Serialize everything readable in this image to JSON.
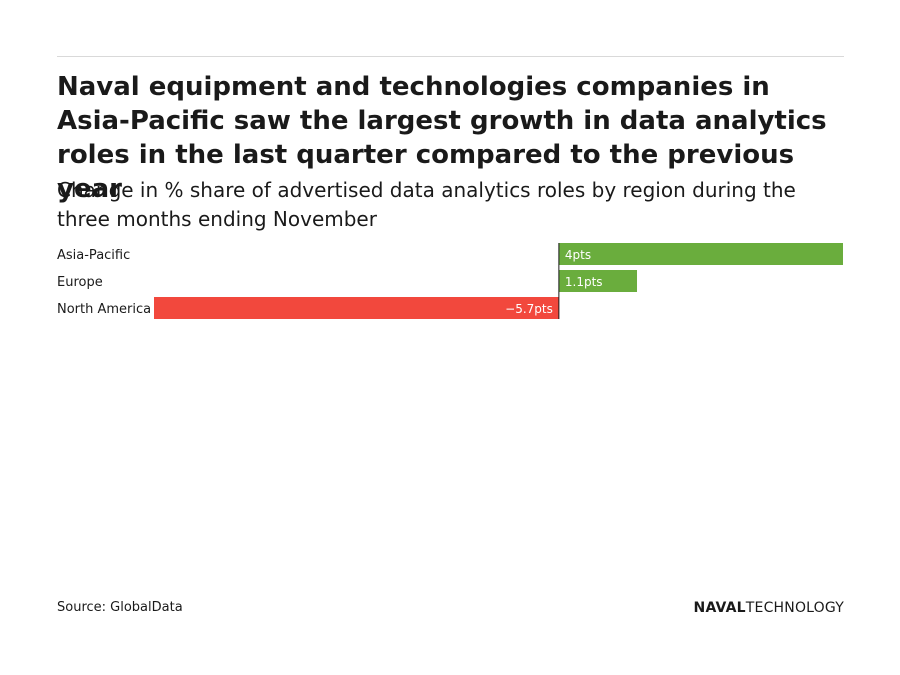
{
  "header": {
    "title": "Naval equipment and technologies companies in Asia-Pacific saw the largest growth in data analytics roles in the last quarter compared to the previous year",
    "subtitle": "Change in % share of advertised data analytics roles by region during the three months ending November"
  },
  "chart_data": {
    "type": "bar",
    "orientation": "horizontal",
    "categories": [
      "Asia-Pacific",
      "Europe",
      "North America"
    ],
    "values": [
      4,
      1.1,
      -5.7
    ],
    "value_labels": [
      "4pts",
      "1.1pts",
      "−5.7pts"
    ],
    "xlim": [
      -5.7,
      4
    ],
    "grid": false,
    "legend": "none",
    "colors": {
      "positive": "#6aad3d",
      "negative": "#f2483d",
      "axis": "#1a1a1a"
    }
  },
  "footer": {
    "source": "Source: GlobalData",
    "brand_bold": "NAVAL",
    "brand_light": "TECHNOLOGY"
  }
}
